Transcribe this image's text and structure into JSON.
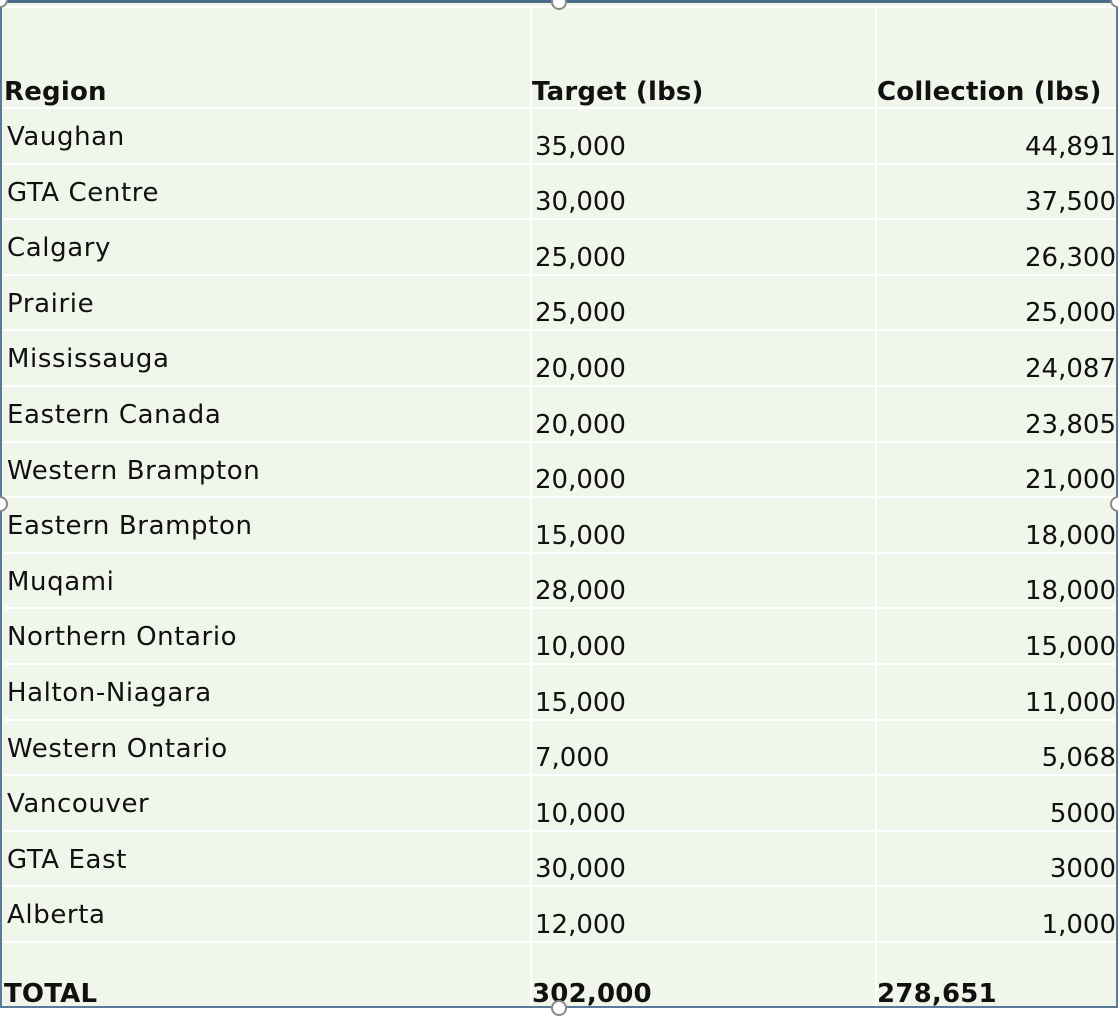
{
  "table": {
    "headers": {
      "region": "Region",
      "target": "Target (lbs)",
      "collection": "Collection (lbs)"
    },
    "rows": [
      {
        "region": "Vaughan",
        "target": "35,000",
        "collection": "44,891"
      },
      {
        "region": "GTA Centre",
        "target": "30,000",
        "collection": "37,500"
      },
      {
        "region": "Calgary",
        "target": "25,000",
        "collection": "26,300"
      },
      {
        "region": "Prairie",
        "target": "25,000",
        "collection": "25,000"
      },
      {
        "region": "Mississauga",
        "target": "20,000",
        "collection": "24,087"
      },
      {
        "region": "Eastern Canada",
        "target": "20,000",
        "collection": "23,805"
      },
      {
        "region": "Western Brampton",
        "target": "20,000",
        "collection": "21,000"
      },
      {
        "region": "Eastern Brampton",
        "target": "15,000",
        "collection": "18,000"
      },
      {
        "region": "Muqami",
        "target": "28,000",
        "collection": "18,000"
      },
      {
        "region": "Northern Ontario",
        "target": "10,000",
        "collection": "15,000"
      },
      {
        "region": "Halton-Niagara",
        "target": "15,000",
        "collection": "11,000"
      },
      {
        "region": "Western Ontario",
        "target": "7,000",
        "collection": "5,068"
      },
      {
        "region": "Vancouver",
        "target": "10,000",
        "collection": "5000"
      },
      {
        "region": "GTA East",
        "target": "30,000",
        "collection": "3000"
      },
      {
        "region": "Alberta",
        "target": "12,000",
        "collection": "1,000"
      }
    ],
    "total": {
      "label": "TOTAL",
      "target": "302,000",
      "collection": "278,651"
    }
  },
  "colors": {
    "cell_background": "#f1f6ea",
    "grid_lines": "#ffffff",
    "frame_border": "#5a7a99",
    "text": "#111111"
  }
}
